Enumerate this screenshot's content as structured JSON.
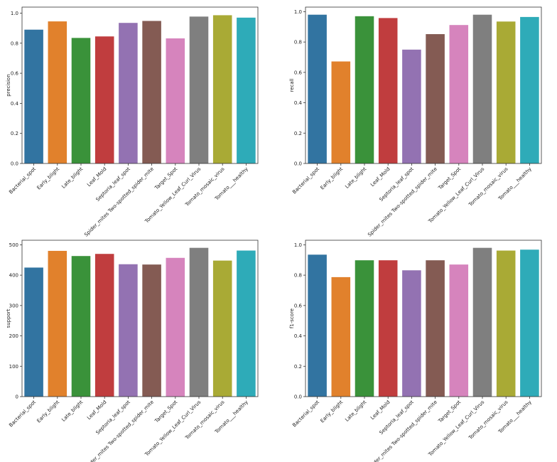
{
  "chart_data": [
    {
      "type": "bar",
      "ylabel": "precision",
      "ylim": [
        0,
        1.04
      ],
      "yticks": [
        "0.0",
        "0.2",
        "0.4",
        "0.6",
        "0.8",
        "1.0"
      ],
      "categories": [
        "Bacterial_spot",
        "Early_blight",
        "Late_blight",
        "Leaf_Mold",
        "Septoria_leaf_spot",
        "Spider_mites Two-spotted_spider_mite",
        "Target_Spot",
        "Tomato_Yellow_Leaf_Curl_Virus",
        "Tomato_mosaic_virus",
        "Tomato___healthy"
      ],
      "values": [
        0.89,
        0.945,
        0.835,
        0.845,
        0.935,
        0.948,
        0.832,
        0.977,
        0.986,
        0.97
      ]
    },
    {
      "type": "bar",
      "ylabel": "recall",
      "ylim": [
        0,
        1.03
      ],
      "yticks": [
        "0.0",
        "0.2",
        "0.4",
        "0.6",
        "0.8",
        "1.0"
      ],
      "categories": [
        "Bacterial_spot",
        "Early_blight",
        "Late_blight",
        "Leaf_Mold",
        "Septoria_leaf_spot",
        "Spider_mites Two-spotted_spider_mite",
        "Target_Spot",
        "Tomato_Yellow_Leaf_Curl_Virus",
        "Tomato_mosaic_virus",
        "Tomato___healthy"
      ],
      "values": [
        0.98,
        0.672,
        0.97,
        0.958,
        0.75,
        0.852,
        0.912,
        0.98,
        0.935,
        0.965
      ]
    },
    {
      "type": "bar",
      "ylabel": "support",
      "ylim": [
        0,
        515
      ],
      "yticks": [
        "0",
        "100",
        "200",
        "300",
        "400",
        "500"
      ],
      "categories": [
        "Bacterial_spot",
        "Early_blight",
        "Late_blight",
        "Leaf_Mold",
        "Septoria_leaf_spot",
        "Spider_mites Two-spotted_spider_mite",
        "Target_Spot",
        "Tomato_Yellow_Leaf_Curl_Virus",
        "Tomato_mosaic_virus",
        "Tomato___healthy"
      ],
      "values": [
        425,
        480,
        463,
        470,
        436,
        435,
        457,
        490,
        448,
        481
      ]
    },
    {
      "type": "bar",
      "ylabel": "f1-score",
      "ylim": [
        0,
        1.03
      ],
      "yticks": [
        "0.0",
        "0.2",
        "0.4",
        "0.6",
        "0.8",
        "1.0"
      ],
      "categories": [
        "Bacterial_spot",
        "Early_blight",
        "Late_blight",
        "Leaf_Mold",
        "Septoria_leaf_spot",
        "Spider_mites Two-spotted_spider_mite",
        "Target_Spot",
        "Tomato_Yellow_Leaf_Curl_Virus",
        "Tomato_mosaic_virus",
        "Tomato___healthy"
      ],
      "values": [
        0.935,
        0.787,
        0.898,
        0.898,
        0.832,
        0.898,
        0.87,
        0.98,
        0.962,
        0.968
      ]
    }
  ],
  "colors": [
    "#3274a1",
    "#e1812c",
    "#3a923a",
    "#c03d3e",
    "#9372b2",
    "#845b53",
    "#d684bd",
    "#7f7f7f",
    "#a9aa35",
    "#2eabb8"
  ]
}
